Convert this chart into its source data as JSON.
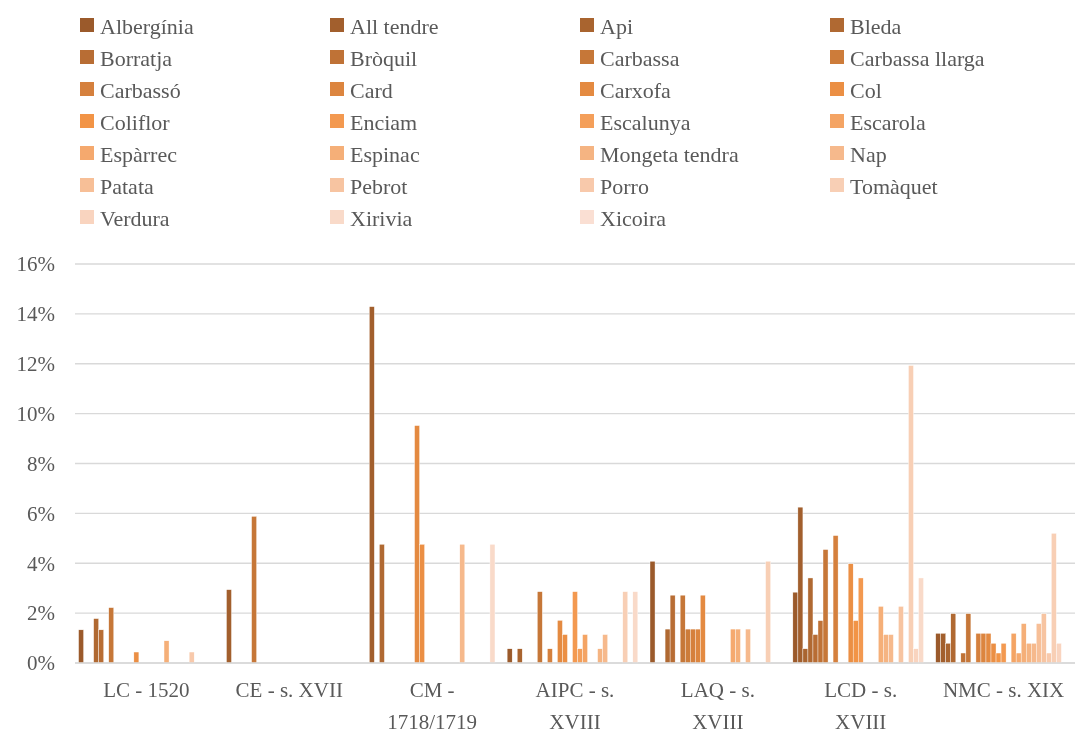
{
  "chart_data": {
    "type": "bar",
    "categories": [
      "LC - 1520",
      "CE - s. XVII",
      "CM - 1718/1719",
      "AIPC - s. XVIII",
      "LAQ - s. XVIII",
      "LCD - s. XVIII",
      "NMC - s. XIX"
    ],
    "ylim": [
      0,
      16
    ],
    "yticks": [
      {
        "value": 0,
        "label": "0%"
      },
      {
        "value": 2,
        "label": "2%"
      },
      {
        "value": 4,
        "label": "4%"
      },
      {
        "value": 6,
        "label": "6%"
      },
      {
        "value": 8,
        "label": "8%"
      },
      {
        "value": 10,
        "label": "10%"
      },
      {
        "value": 12,
        "label": "12%"
      },
      {
        "value": 14,
        "label": "14%"
      },
      {
        "value": 16,
        "label": "16%"
      }
    ],
    "grid": "y",
    "legend": "top",
    "series": [
      {
        "name": "Albergínia",
        "color": "#9b5a2b",
        "values": [
          1.33,
          null,
          null,
          0.57,
          4.08,
          2.84,
          1.19
        ]
      },
      {
        "name": "All tendre",
        "color": "#a25f2d",
        "values": [
          null,
          2.94,
          14.29,
          null,
          null,
          6.25,
          1.19
        ]
      },
      {
        "name": "Api",
        "color": "#a9642f",
        "values": [
          null,
          null,
          null,
          0.57,
          null,
          0.57,
          0.79
        ]
      },
      {
        "name": "Bleda",
        "color": "#b06932",
        "values": [
          1.78,
          null,
          4.76,
          null,
          1.36,
          3.41,
          1.98
        ]
      },
      {
        "name": "Borratja",
        "color": "#b86d34",
        "values": [
          1.33,
          null,
          null,
          null,
          2.72,
          1.14,
          null
        ]
      },
      {
        "name": "Bròquil",
        "color": "#bf7236",
        "values": [
          null,
          null,
          null,
          null,
          null,
          1.7,
          0.4
        ]
      },
      {
        "name": "Carbassa",
        "color": "#c67738",
        "values": [
          2.22,
          5.88,
          null,
          2.86,
          2.72,
          4.55,
          1.98
        ]
      },
      {
        "name": "Carbassa llarga",
        "color": "#cd7c3a",
        "values": [
          null,
          null,
          null,
          null,
          1.36,
          null,
          null
        ]
      },
      {
        "name": "Carbassó",
        "color": "#d5803d",
        "values": [
          null,
          null,
          null,
          0.57,
          1.36,
          5.11,
          1.19
        ]
      },
      {
        "name": "Card",
        "color": "#dc853f",
        "values": [
          null,
          null,
          null,
          null,
          1.36,
          null,
          1.19
        ]
      },
      {
        "name": "Carxofa",
        "color": "#e48a41",
        "values": [
          null,
          null,
          9.52,
          1.71,
          2.72,
          null,
          1.19
        ]
      },
      {
        "name": "Col",
        "color": "#eb8f44",
        "values": [
          0.44,
          null,
          4.76,
          1.14,
          null,
          3.98,
          0.79
        ]
      },
      {
        "name": "Coliflor",
        "color": "#f29446",
        "values": [
          null,
          null,
          null,
          null,
          null,
          1.7,
          0.4
        ]
      },
      {
        "name": "Enciam",
        "color": "#f39950",
        "values": [
          null,
          null,
          null,
          2.86,
          null,
          3.41,
          0.79
        ]
      },
      {
        "name": "Escalunya",
        "color": "#f49f5a",
        "values": [
          null,
          null,
          null,
          0.57,
          null,
          null,
          null
        ]
      },
      {
        "name": "Escarola",
        "color": "#f4a464",
        "values": [
          null,
          null,
          null,
          1.14,
          null,
          null,
          1.19
        ]
      },
      {
        "name": "Espàrrec",
        "color": "#f5a96e",
        "values": [
          null,
          null,
          null,
          null,
          1.36,
          null,
          0.4
        ]
      },
      {
        "name": "Espinac",
        "color": "#f5af78",
        "values": [
          0.89,
          null,
          null,
          null,
          1.36,
          2.27,
          1.58
        ]
      },
      {
        "name": "Mongeta tendra",
        "color": "#f5b482",
        "values": [
          null,
          null,
          null,
          0.57,
          null,
          1.14,
          0.79
        ]
      },
      {
        "name": "Nap",
        "color": "#f6b98c",
        "values": [
          null,
          null,
          4.76,
          1.14,
          1.36,
          1.14,
          0.79
        ]
      },
      {
        "name": "Patata",
        "color": "#f7bf97",
        "values": [
          null,
          null,
          null,
          null,
          null,
          null,
          1.58
        ]
      },
      {
        "name": "Pebrot",
        "color": "#f7c4a1",
        "values": [
          null,
          null,
          null,
          null,
          null,
          2.27,
          1.98
        ]
      },
      {
        "name": "Porro",
        "color": "#f8c9ab",
        "values": [
          0.44,
          null,
          null,
          null,
          null,
          null,
          0.4
        ]
      },
      {
        "name": "Tomàquet",
        "color": "#f8cfb5",
        "values": [
          null,
          null,
          null,
          2.86,
          4.08,
          11.93,
          5.2
        ]
      },
      {
        "name": "Verdura",
        "color": "#f9d4bf",
        "values": [
          null,
          null,
          null,
          null,
          null,
          0.57,
          0.79
        ]
      },
      {
        "name": "Xirivia",
        "color": "#f9dac9",
        "values": [
          null,
          null,
          4.76,
          2.86,
          null,
          3.41,
          null
        ]
      },
      {
        "name": "Xicoira",
        "color": "#fadfd3",
        "values": [
          null,
          null,
          null,
          null,
          null,
          null,
          null
        ]
      }
    ]
  }
}
